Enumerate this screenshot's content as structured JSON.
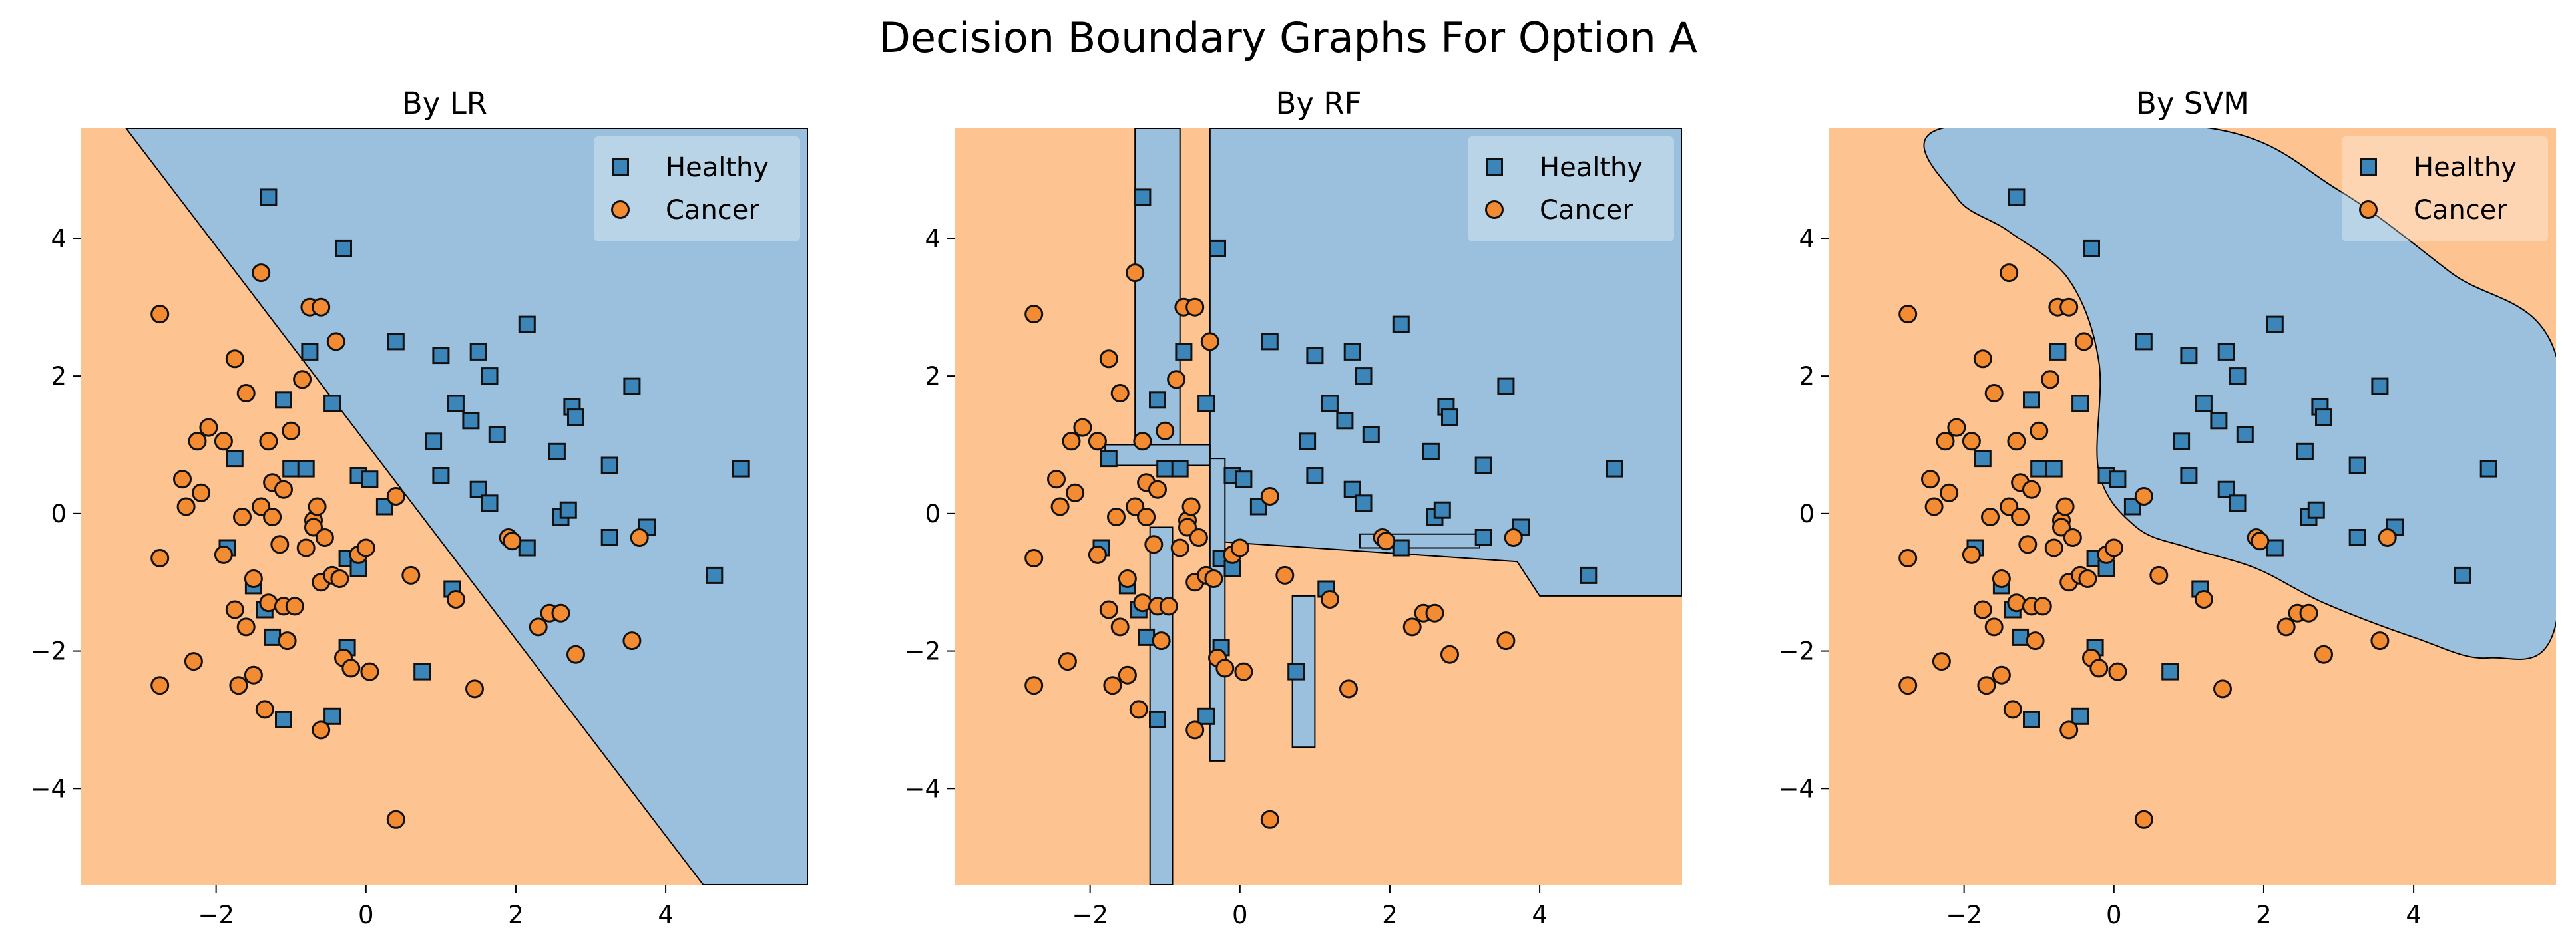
{
  "suptitle": "Decision Boundary Graphs For Option A",
  "colors": {
    "healthy_region": "#9bc0dd",
    "cancer_region": "#fdc391",
    "healthy_marker": "#3c85b9",
    "cancer_marker": "#f28b32",
    "edge": "#111111"
  },
  "chart_data": [
    {
      "type": "scatter",
      "title": "By LR",
      "xlabel": "",
      "ylabel": "",
      "xlim": [
        -3.8,
        5.9
      ],
      "ylim": [
        -5.4,
        5.6
      ],
      "xticks": [
        -2,
        0,
        2,
        4
      ],
      "yticks": [
        -4,
        -2,
        0,
        2,
        4
      ],
      "legend": {
        "position": "top-right",
        "entries": [
          "Healthy",
          "Cancer"
        ]
      },
      "boundary": {
        "kind": "line",
        "healthy_side": "upper-right",
        "points": [
          [
            -3.2,
            5.6
          ],
          [
            4.5,
            -5.4
          ]
        ]
      }
    },
    {
      "type": "scatter",
      "title": "By RF",
      "xlabel": "",
      "ylabel": "",
      "xlim": [
        -3.8,
        5.9
      ],
      "ylim": [
        -5.4,
        5.6
      ],
      "xticks": [
        -2,
        0,
        2,
        4
      ],
      "yticks": [
        -4,
        -2,
        0,
        2,
        4
      ],
      "legend": {
        "position": "top-right",
        "entries": [
          "Healthy",
          "Cancer"
        ]
      },
      "boundary": {
        "kind": "regions",
        "healthy_regions": [
          [
            [
              -1.4,
              5.6
            ],
            [
              -0.8,
              5.6
            ],
            [
              -0.8,
              0.7
            ],
            [
              -1.4,
              0.7
            ]
          ],
          [
            [
              -0.4,
              5.6
            ],
            [
              5.9,
              5.6
            ],
            [
              5.9,
              -1.2
            ],
            [
              4.0,
              -1.2
            ],
            [
              3.7,
              -0.7
            ],
            [
              -0.4,
              -0.4
            ]
          ],
          [
            [
              -1.8,
              1.0
            ],
            [
              -0.4,
              1.0
            ],
            [
              -0.4,
              0.7
            ],
            [
              -1.8,
              0.7
            ]
          ],
          [
            [
              -0.4,
              0.8
            ],
            [
              -0.2,
              0.8
            ],
            [
              -0.2,
              -3.6
            ],
            [
              -0.4,
              -3.6
            ]
          ],
          [
            [
              -1.2,
              -0.2
            ],
            [
              -0.9,
              -0.2
            ],
            [
              -0.9,
              -5.4
            ],
            [
              -1.2,
              -5.4
            ]
          ],
          [
            [
              0.7,
              -1.2
            ],
            [
              1.0,
              -1.2
            ],
            [
              1.0,
              -3.4
            ],
            [
              0.7,
              -3.4
            ]
          ],
          [
            [
              1.6,
              -0.3
            ],
            [
              3.2,
              -0.3
            ],
            [
              3.2,
              -0.5
            ],
            [
              1.6,
              -0.5
            ]
          ]
        ]
      }
    },
    {
      "type": "scatter",
      "title": "By SVM",
      "xlabel": "",
      "ylabel": "",
      "xlim": [
        -3.8,
        5.9
      ],
      "ylim": [
        -5.4,
        5.6
      ],
      "xticks": [
        -2,
        0,
        2,
        4
      ],
      "yticks": [
        -4,
        -2,
        0,
        2,
        4
      ],
      "legend": {
        "position": "top-right",
        "entries": [
          "Healthy",
          "Cancer"
        ]
      },
      "boundary": {
        "kind": "curve",
        "healthy_outline": [
          [
            -2.3,
            5.6
          ],
          [
            1.3,
            5.6
          ],
          [
            3.0,
            4.7
          ],
          [
            4.5,
            3.5
          ],
          [
            5.9,
            2.3
          ],
          [
            5.9,
            -1.6
          ],
          [
            5.0,
            -2.1
          ],
          [
            4.0,
            -1.8
          ],
          [
            2.8,
            -1.3
          ],
          [
            1.9,
            -0.8
          ],
          [
            1.0,
            -0.5
          ],
          [
            0.3,
            -0.2
          ],
          [
            -0.2,
            0.6
          ],
          [
            -0.2,
            2.2
          ],
          [
            -0.6,
            3.4
          ],
          [
            -1.4,
            4.1
          ],
          [
            -2.1,
            4.6
          ]
        ]
      }
    }
  ],
  "points": {
    "healthy": [
      [
        -1.3,
        4.6
      ],
      [
        -0.3,
        3.85
      ],
      [
        -0.75,
        2.35
      ],
      [
        -0.45,
        1.6
      ],
      [
        -1.1,
        1.65
      ],
      [
        -1.0,
        0.65
      ],
      [
        -0.8,
        0.65
      ],
      [
        -1.75,
        0.8
      ],
      [
        -1.85,
        -0.5
      ],
      [
        -1.5,
        -1.05
      ],
      [
        -1.35,
        -1.4
      ],
      [
        -1.25,
        -1.8
      ],
      [
        -1.1,
        -3.0
      ],
      [
        -0.45,
        -2.95
      ],
      [
        -0.25,
        -1.95
      ],
      [
        -0.25,
        -0.65
      ],
      [
        -0.1,
        -0.8
      ],
      [
        -0.1,
        0.55
      ],
      [
        0.05,
        0.5
      ],
      [
        0.25,
        0.1
      ],
      [
        0.4,
        2.5
      ],
      [
        0.75,
        -2.3
      ],
      [
        1.0,
        2.3
      ],
      [
        1.0,
        0.55
      ],
      [
        0.9,
        1.05
      ],
      [
        1.15,
        -1.1
      ],
      [
        1.2,
        1.6
      ],
      [
        1.4,
        1.35
      ],
      [
        1.5,
        2.35
      ],
      [
        1.5,
        0.35
      ],
      [
        1.65,
        2.0
      ],
      [
        1.65,
        0.15
      ],
      [
        1.75,
        1.15
      ],
      [
        2.15,
        2.75
      ],
      [
        2.15,
        -0.5
      ],
      [
        2.55,
        0.9
      ],
      [
        2.6,
        -0.05
      ],
      [
        2.7,
        0.05
      ],
      [
        2.75,
        1.55
      ],
      [
        2.8,
        1.4
      ],
      [
        3.25,
        0.7
      ],
      [
        3.25,
        -0.35
      ],
      [
        3.55,
        1.85
      ],
      [
        3.75,
        -0.2
      ],
      [
        4.65,
        -0.9
      ],
      [
        5.0,
        0.65
      ]
    ],
    "cancer": [
      [
        -2.75,
        2.9
      ],
      [
        -2.75,
        -0.65
      ],
      [
        -2.75,
        -2.5
      ],
      [
        -2.45,
        0.5
      ],
      [
        -2.4,
        0.1
      ],
      [
        -2.3,
        -2.15
      ],
      [
        -2.25,
        1.05
      ],
      [
        -2.2,
        0.3
      ],
      [
        -2.1,
        1.25
      ],
      [
        -1.9,
        1.05
      ],
      [
        -1.9,
        -0.6
      ],
      [
        -1.75,
        2.25
      ],
      [
        -1.75,
        -1.4
      ],
      [
        -1.7,
        -2.5
      ],
      [
        -1.65,
        -0.05
      ],
      [
        -1.6,
        1.75
      ],
      [
        -1.6,
        -1.65
      ],
      [
        -1.5,
        -0.95
      ],
      [
        -1.5,
        -2.35
      ],
      [
        -1.4,
        3.5
      ],
      [
        -1.4,
        0.1
      ],
      [
        -1.35,
        -2.85
      ],
      [
        -1.3,
        1.05
      ],
      [
        -1.3,
        -1.3
      ],
      [
        -1.25,
        0.45
      ],
      [
        -1.25,
        -0.05
      ],
      [
        -1.15,
        -0.45
      ],
      [
        -1.1,
        0.35
      ],
      [
        -1.1,
        -1.35
      ],
      [
        -1.05,
        -1.85
      ],
      [
        -1.0,
        1.2
      ],
      [
        -0.95,
        -1.35
      ],
      [
        -0.85,
        1.95
      ],
      [
        -0.8,
        -0.5
      ],
      [
        -0.75,
        3.0
      ],
      [
        -0.7,
        -0.1
      ],
      [
        -0.7,
        -0.2
      ],
      [
        -0.65,
        0.1
      ],
      [
        -0.6,
        -1.0
      ],
      [
        -0.6,
        -3.15
      ],
      [
        -0.6,
        3.0
      ],
      [
        -0.55,
        -0.35
      ],
      [
        -0.45,
        -0.9
      ],
      [
        -0.4,
        2.5
      ],
      [
        -0.35,
        -0.95
      ],
      [
        -0.3,
        -2.1
      ],
      [
        -0.2,
        -2.25
      ],
      [
        -0.1,
        -0.6
      ],
      [
        0.0,
        -0.5
      ],
      [
        0.05,
        -2.3
      ],
      [
        0.4,
        -4.45
      ],
      [
        0.4,
        0.25
      ],
      [
        0.6,
        -0.9
      ],
      [
        1.2,
        -1.25
      ],
      [
        1.45,
        -2.55
      ],
      [
        1.9,
        -0.35
      ],
      [
        1.95,
        -0.4
      ],
      [
        2.3,
        -1.65
      ],
      [
        2.45,
        -1.45
      ],
      [
        2.6,
        -1.45
      ],
      [
        2.8,
        -2.05
      ],
      [
        3.55,
        -1.85
      ],
      [
        3.65,
        -0.35
      ]
    ]
  }
}
